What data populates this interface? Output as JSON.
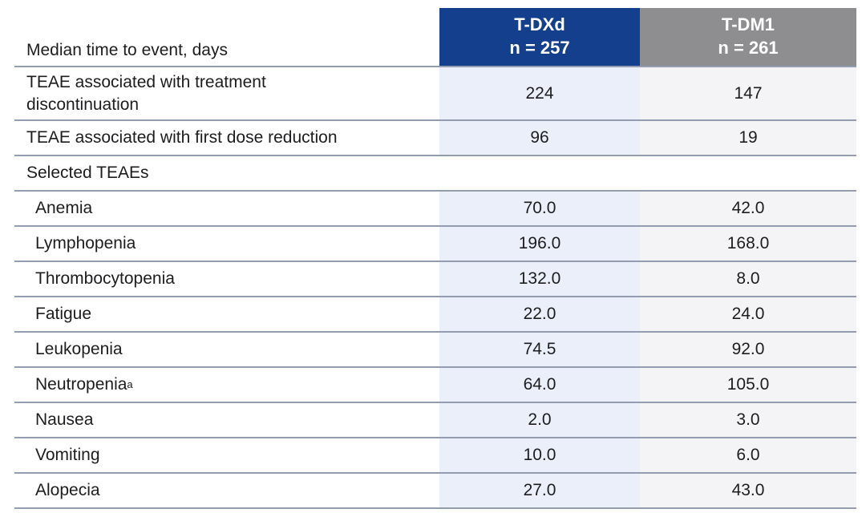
{
  "chart_data": {
    "type": "table",
    "corner_header": "Median time to event, days",
    "unit": "days",
    "columns": [
      {
        "title": "T-DXd",
        "subtitle": "n = 257"
      },
      {
        "title": "T-DM1",
        "subtitle": "n = 261"
      }
    ],
    "rows": [
      {
        "label": "TEAE associated with treatment discontinuation",
        "kind": "data",
        "values": [
          "224",
          "147"
        ]
      },
      {
        "label": "TEAE associated with first dose reduction",
        "kind": "data",
        "values": [
          "96",
          "19"
        ]
      },
      {
        "label": "Selected TEAEs",
        "kind": "section",
        "values": [
          "",
          ""
        ]
      },
      {
        "label": "Anemia",
        "kind": "data",
        "indent": true,
        "values": [
          "70.0",
          "42.0"
        ]
      },
      {
        "label": "Lymphopenia",
        "kind": "data",
        "indent": true,
        "values": [
          "196.0",
          "168.0"
        ]
      },
      {
        "label": "Thrombocytopenia",
        "kind": "data",
        "indent": true,
        "values": [
          "132.0",
          "8.0"
        ]
      },
      {
        "label": "Fatigue",
        "kind": "data",
        "indent": true,
        "values": [
          "22.0",
          "24.0"
        ]
      },
      {
        "label": "Leukopenia",
        "kind": "data",
        "indent": true,
        "values": [
          "74.5",
          "92.0"
        ]
      },
      {
        "label": "Neutropenia",
        "sup": "a",
        "kind": "data",
        "indent": true,
        "values": [
          "64.0",
          "105.0"
        ]
      },
      {
        "label": "Nausea",
        "kind": "data",
        "indent": true,
        "values": [
          "2.0",
          "3.0"
        ]
      },
      {
        "label": "Vomiting",
        "kind": "data",
        "indent": true,
        "values": [
          "10.0",
          "6.0"
        ]
      },
      {
        "label": "Alopecia",
        "kind": "data",
        "indent": true,
        "values": [
          "27.0",
          "43.0"
        ]
      }
    ],
    "colors": {
      "tdxd_header_bg": "#143f8c",
      "tdm1_header_bg": "#8e8e90",
      "tdxd_cell_bg": "#eaeff9",
      "tdm1_cell_bg": "#f4f4f6",
      "row_line": "#939db0",
      "header_text": "#ffffff",
      "body_text": "#1d1d1f"
    }
  }
}
